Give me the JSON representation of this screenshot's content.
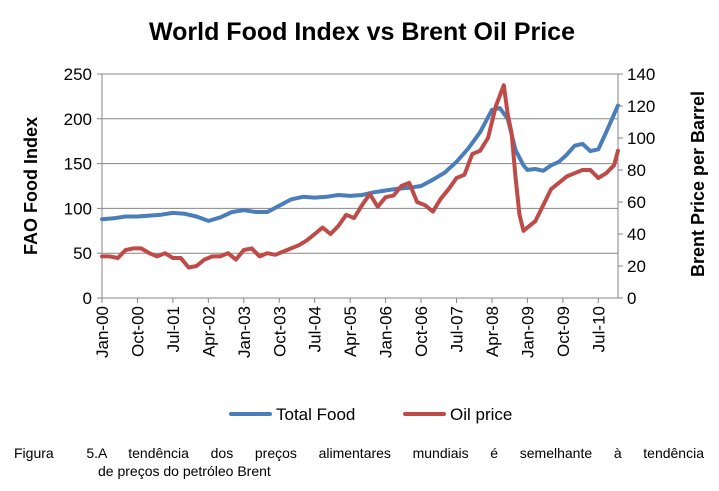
{
  "chart_data": {
    "type": "line",
    "title": "World Food Index vs Brent Oil Price",
    "y_left_label": "FAO Food Index",
    "y_right_label": "Brent Price per Barrel",
    "y_left_range": [
      0,
      250
    ],
    "y_left_ticks": [
      "0",
      "50",
      "100",
      "150",
      "200",
      "250"
    ],
    "y_right_range": [
      0,
      140
    ],
    "y_right_ticks": [
      "0",
      "20",
      "40",
      "60",
      "80",
      "100",
      "120",
      "140"
    ],
    "x_ticks": [
      "Jan-00",
      "Oct-00",
      "Jul-01",
      "Apr-02",
      "Jan-03",
      "Oct-03",
      "Jul-04",
      "Apr-05",
      "Jan-06",
      "Oct-06",
      "Jul-07",
      "Apr-08",
      "Jan-09",
      "Oct-09",
      "Jul-10"
    ],
    "x_start": "2000-01",
    "x_end": "2010-12",
    "grid": "horizontal",
    "legend_position": "bottom",
    "series": [
      {
        "name": "Total Food",
        "axis": "left",
        "color": "#4a7ebb",
        "x": [
          "2000-01",
          "2000-04",
          "2000-07",
          "2000-10",
          "2001-01",
          "2001-04",
          "2001-07",
          "2001-10",
          "2002-01",
          "2002-04",
          "2002-07",
          "2002-10",
          "2003-01",
          "2003-04",
          "2003-07",
          "2003-10",
          "2004-01",
          "2004-04",
          "2004-07",
          "2004-10",
          "2005-01",
          "2005-04",
          "2005-07",
          "2005-10",
          "2006-01",
          "2006-04",
          "2006-07",
          "2006-10",
          "2007-01",
          "2007-04",
          "2007-07",
          "2007-10",
          "2008-01",
          "2008-04",
          "2008-06",
          "2008-08",
          "2008-10",
          "2008-12",
          "2009-01",
          "2009-03",
          "2009-05",
          "2009-07",
          "2009-09",
          "2009-11",
          "2010-01",
          "2010-03",
          "2010-05",
          "2010-07",
          "2010-09",
          "2010-11",
          "2010-12"
        ],
        "values": [
          88,
          89,
          91,
          91,
          92,
          93,
          95,
          94,
          91,
          86,
          90,
          96,
          98,
          96,
          96,
          103,
          110,
          113,
          112,
          113,
          115,
          114,
          115,
          118,
          120,
          122,
          123,
          125,
          132,
          140,
          152,
          167,
          185,
          210,
          212,
          200,
          165,
          148,
          143,
          144,
          142,
          148,
          152,
          160,
          170,
          172,
          164,
          166,
          185,
          205,
          215
        ]
      },
      {
        "name": "Oil price",
        "axis": "right",
        "color": "#be4b48",
        "x": [
          "2000-01",
          "2000-03",
          "2000-05",
          "2000-07",
          "2000-09",
          "2000-11",
          "2001-01",
          "2001-03",
          "2001-05",
          "2001-07",
          "2001-09",
          "2001-11",
          "2002-01",
          "2002-03",
          "2002-05",
          "2002-07",
          "2002-09",
          "2002-11",
          "2003-01",
          "2003-03",
          "2003-05",
          "2003-07",
          "2003-09",
          "2003-11",
          "2004-01",
          "2004-03",
          "2004-05",
          "2004-07",
          "2004-09",
          "2004-11",
          "2005-01",
          "2005-03",
          "2005-05",
          "2005-07",
          "2005-09",
          "2005-11",
          "2006-01",
          "2006-03",
          "2006-05",
          "2006-07",
          "2006-09",
          "2006-11",
          "2007-01",
          "2007-03",
          "2007-05",
          "2007-07",
          "2007-09",
          "2007-11",
          "2008-01",
          "2008-03",
          "2008-05",
          "2008-07",
          "2008-08",
          "2008-09",
          "2008-10",
          "2008-11",
          "2008-12",
          "2009-01",
          "2009-03",
          "2009-05",
          "2009-07",
          "2009-09",
          "2009-11",
          "2010-01",
          "2010-03",
          "2010-05",
          "2010-07",
          "2010-09",
          "2010-11",
          "2010-12"
        ],
        "values": [
          26,
          26,
          25,
          30,
          31,
          31,
          28,
          26,
          28,
          25,
          25,
          19,
          20,
          24,
          26,
          26,
          28,
          24,
          30,
          31,
          26,
          28,
          27,
          29,
          31,
          33,
          36,
          40,
          44,
          40,
          45,
          52,
          50,
          58,
          65,
          57,
          63,
          64,
          70,
          72,
          60,
          58,
          54,
          62,
          68,
          75,
          77,
          90,
          92,
          100,
          120,
          133,
          115,
          103,
          75,
          52,
          42,
          44,
          48,
          58,
          68,
          72,
          76,
          78,
          80,
          80,
          75,
          78,
          83,
          92
        ]
      }
    ]
  },
  "caption": {
    "label": "Figura 5.",
    "line1": "A tendência dos preços alimentares mundiais é semelhante à tendência",
    "line2": "de preços do petróleo Brent"
  }
}
